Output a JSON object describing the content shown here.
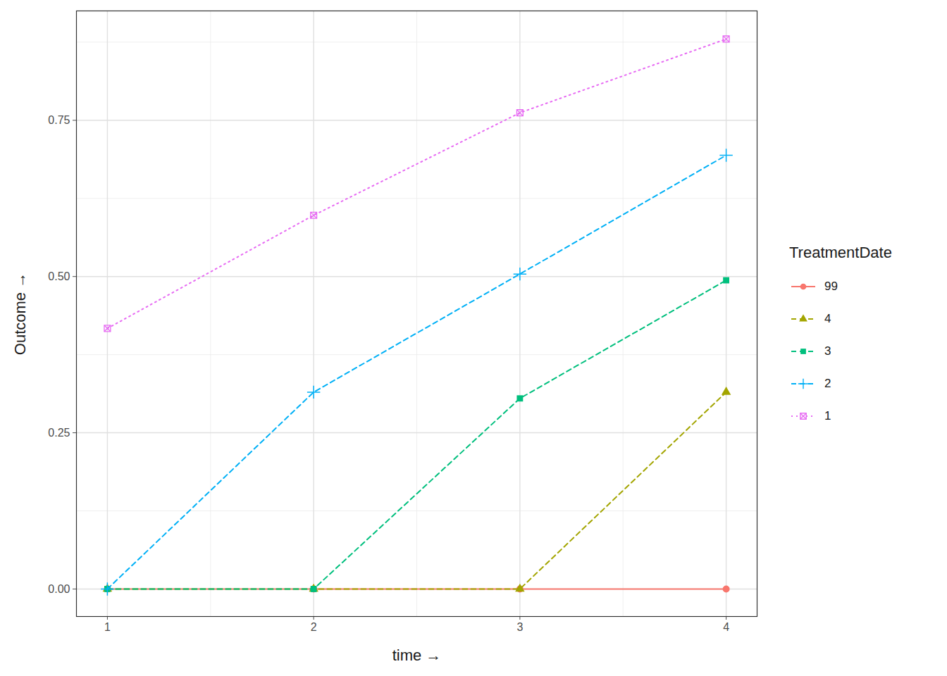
{
  "chart_data": {
    "type": "line",
    "x_label": "time",
    "y_label": "Outcome",
    "legend_title": "TreatmentDate",
    "x": [
      1,
      2,
      3,
      4
    ],
    "xlim": [
      0.85,
      4.15
    ],
    "xticks": [
      1,
      2,
      3,
      4
    ],
    "ylim": [
      -0.044,
      0.925
    ],
    "yticks": [
      {
        "value": 0,
        "label": "0.00"
      },
      {
        "value": 0.25,
        "label": "0.25"
      },
      {
        "value": 0.5,
        "label": "0.50"
      },
      {
        "value": 0.75,
        "label": "0.75"
      }
    ],
    "grid": true,
    "legend": "right",
    "series": [
      {
        "name": "99",
        "color": "#F8766D",
        "marker": "circle",
        "line_style": "solid",
        "values": [
          0,
          0,
          0,
          0
        ]
      },
      {
        "name": "4",
        "color": "#A3A500",
        "marker": "triangle",
        "line_style": "dashed",
        "values": [
          0,
          0,
          0,
          0.315
        ]
      },
      {
        "name": "3",
        "color": "#00BF7D",
        "marker": "square",
        "line_style": "dashed",
        "values": [
          0,
          0,
          0.305,
          0.494
        ]
      },
      {
        "name": "2",
        "color": "#00B0F6",
        "marker": "plus",
        "line_style": "dashed",
        "values": [
          0,
          0.315,
          0.504,
          0.694
        ]
      },
      {
        "name": "1",
        "color": "#E76BF3",
        "marker": "square_cross",
        "line_style": "dotted",
        "values": [
          0.417,
          0.598,
          0.762,
          0.88
        ]
      }
    ]
  }
}
